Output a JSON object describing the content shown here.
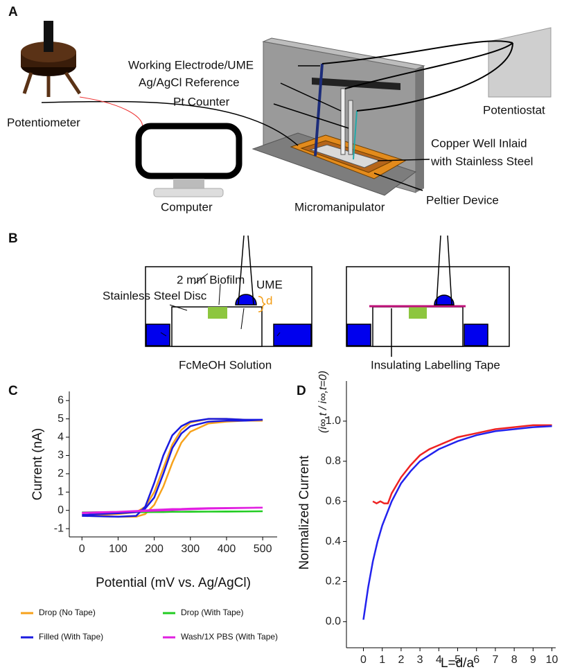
{
  "panel_a": {
    "label": "A",
    "working_electrode": "Working Electrode/UME",
    "reference": "Ag/AgCl Reference",
    "counter": "Pt Counter",
    "potentiostat": "Potentiostat",
    "potentiometer": "Potentiometer",
    "computer": "Computer",
    "micromanipulator": "Micromanipulator",
    "copper_well": [
      "Copper Well Inlaid",
      "with Stainless Steel"
    ],
    "peltier": "Peltier Device"
  },
  "panel_b": {
    "label": "B",
    "biofilm": "2 mm Biofilm",
    "ume": "UME",
    "disc": "Stainless Steel Disc",
    "distance": "d",
    "solution": "FcMeOH Solution",
    "tape": "Insulating Labelling Tape"
  },
  "chart_data": [
    {
      "panel_label": "C",
      "type": "line",
      "xlabel": "Potential (mV vs. Ag/AgCl)",
      "ylabel": "Current (nA)",
      "x": [
        0,
        50,
        100,
        150,
        175,
        200,
        225,
        250,
        275,
        300,
        350,
        400,
        450,
        500,
        450,
        400,
        350,
        300,
        275,
        250,
        225,
        200,
        175,
        150,
        100,
        50,
        0
      ],
      "xlim": [
        -35,
        540
      ],
      "xticks": [
        0,
        100,
        200,
        300,
        400,
        500
      ],
      "ylim": [
        -1.45,
        6.5
      ],
      "yticks": [
        -1,
        0,
        1,
        2,
        3,
        4,
        5,
        6
      ],
      "series": [
        {
          "name": "Drop (No Tape)",
          "color": "#f7a21b",
          "values": [
            -0.3,
            -0.32,
            -0.35,
            -0.35,
            -0.2,
            0.3,
            1.3,
            2.6,
            3.7,
            4.3,
            4.75,
            4.85,
            4.9,
            4.9,
            4.95,
            5.0,
            5.0,
            4.8,
            4.4,
            3.6,
            2.3,
            1.0,
            0.2,
            -0.1,
            -0.2,
            -0.25,
            -0.3
          ]
        },
        {
          "name": "Drop (With Tape)",
          "color": "#22cc22",
          "values": [
            -0.12,
            -0.11,
            -0.1,
            -0.1,
            -0.1,
            -0.09,
            -0.09,
            -0.08,
            -0.08,
            -0.07,
            -0.07,
            -0.06,
            -0.06,
            -0.05,
            -0.06,
            -0.07,
            -0.07,
            -0.08,
            -0.08,
            -0.08,
            -0.09,
            -0.09,
            -0.09,
            -0.1,
            -0.1,
            -0.1,
            -0.11
          ]
        },
        {
          "name": "Filled (With Tape)",
          "color": "#1a1adf",
          "values": [
            -0.3,
            -0.32,
            -0.35,
            -0.3,
            0.2,
            1.5,
            3.0,
            4.1,
            4.6,
            4.85,
            5.0,
            5.0,
            4.95,
            4.95,
            4.9,
            4.9,
            4.85,
            4.6,
            4.2,
            3.4,
            2.0,
            0.7,
            0.1,
            -0.1,
            -0.15,
            -0.2,
            -0.25
          ]
        },
        {
          "name": "Wash/1X PBS (With Tape)",
          "color": "#e020e0",
          "values": [
            -0.15,
            -0.12,
            -0.08,
            -0.03,
            0.0,
            0.03,
            0.05,
            0.07,
            0.08,
            0.1,
            0.12,
            0.13,
            0.14,
            0.15,
            0.13,
            0.11,
            0.09,
            0.06,
            0.04,
            0.02,
            0.0,
            -0.02,
            -0.04,
            -0.05,
            -0.08,
            -0.1,
            -0.13
          ]
        }
      ]
    },
    {
      "panel_label": "D",
      "type": "line",
      "xlabel": "L=d/a",
      "ylabel": "Normalized Current",
      "ylabel_formula": "(i∞,t / i∞,t=0)",
      "xlim": [
        -0.9,
        10.2
      ],
      "xticks": [
        0,
        1,
        2,
        3,
        4,
        5,
        6,
        7,
        8,
        9,
        10
      ],
      "ylim": [
        -0.13,
        1.2
      ],
      "yticks": [
        {
          "value": 0,
          "label": "0.0"
        },
        0.2,
        0.4,
        0.6,
        0.8,
        {
          "value": 1,
          "label": "1.0"
        }
      ],
      "series": [
        {
          "color": "#ee2222",
          "x": [
            0.5,
            0.7,
            0.9,
            1.1,
            1.3,
            1.5,
            2,
            2.5,
            3,
            3.5,
            4,
            5,
            6,
            7,
            8,
            9,
            10
          ],
          "values": [
            0.6,
            0.59,
            0.6,
            0.59,
            0.59,
            0.64,
            0.72,
            0.78,
            0.83,
            0.86,
            0.88,
            0.92,
            0.94,
            0.96,
            0.97,
            0.98,
            0.98
          ]
        },
        {
          "color": "#2222ee",
          "x": [
            0,
            0.25,
            0.5,
            0.75,
            1,
            1.5,
            2,
            2.5,
            3,
            3.5,
            4,
            5,
            6,
            7,
            8,
            9,
            10
          ],
          "values": [
            0.01,
            0.17,
            0.3,
            0.4,
            0.48,
            0.6,
            0.69,
            0.75,
            0.8,
            0.83,
            0.86,
            0.9,
            0.93,
            0.95,
            0.96,
            0.97,
            0.975
          ]
        }
      ]
    }
  ]
}
